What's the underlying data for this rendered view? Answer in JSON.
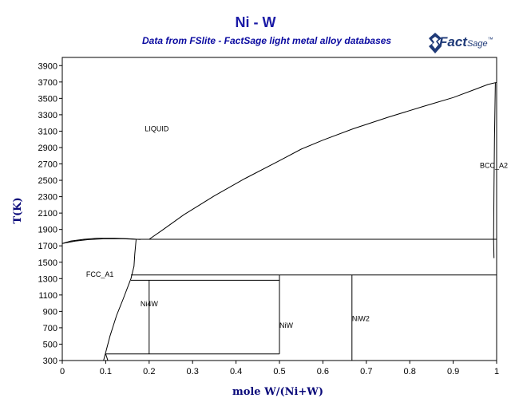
{
  "header": {
    "title": "Ni - W",
    "subtitle": "Data from FSlite - FactSage light metal alloy databases",
    "logo_main": "Fact",
    "logo_small": "Sage",
    "logo_mark": "™"
  },
  "colors": {
    "title": "#1a1aa6",
    "subtitle": "#0a0aa0",
    "axis_title": "#0a0a7a",
    "lines": "#000000",
    "logo": "#1f3a78"
  },
  "chart_data": {
    "type": "line",
    "xlabel": "mole W/(Ni+W)",
    "ylabel": "T(K)",
    "xlim": [
      0,
      1
    ],
    "ylim": [
      300,
      4000
    ],
    "x_ticks": [
      0,
      0.1,
      0.2,
      0.3,
      0.4,
      0.5,
      0.6,
      0.7,
      0.8,
      0.9,
      1
    ],
    "x_tick_labels": [
      "0",
      "0.1",
      "0.2",
      "0.3",
      "0.4",
      "0.5",
      "0.6",
      "0.7",
      "0.8",
      "0.9",
      "1"
    ],
    "y_ticks": [
      300,
      500,
      700,
      900,
      1100,
      1300,
      1500,
      1700,
      1900,
      2100,
      2300,
      2500,
      2700,
      2900,
      3100,
      3300,
      3500,
      3700,
      3900
    ],
    "y_tick_labels": [
      "300",
      "500",
      "700",
      "900",
      "1100",
      "1300",
      "1500",
      "1700",
      "1900",
      "2100",
      "2300",
      "2500",
      "2700",
      "2900",
      "3100",
      "3300",
      "3500",
      "3700",
      "3900"
    ],
    "grid": false,
    "phase_labels": [
      {
        "text": "LIQUID",
        "x": 0.19,
        "y": 3100
      },
      {
        "text": "FCC_A1",
        "x": 0.055,
        "y": 1320
      },
      {
        "text": "Ni4W",
        "x": 0.18,
        "y": 960
      },
      {
        "text": "NiW",
        "x": 0.5,
        "y": 700
      },
      {
        "text": "NiW2",
        "x": 0.667,
        "y": 780
      },
      {
        "text": "BCC_A2",
        "x": 0.99,
        "y": 2650
      }
    ],
    "series": [
      {
        "id": "liquidus-ni-side",
        "points": [
          [
            0,
            1728
          ],
          [
            0.02,
            1760
          ],
          [
            0.05,
            1780
          ],
          [
            0.08,
            1792
          ],
          [
            0.12,
            1792
          ],
          [
            0.15,
            1788
          ],
          [
            0.18,
            1778
          ]
        ]
      },
      {
        "id": "solidus-fcc",
        "points": [
          [
            0,
            1728
          ],
          [
            0.03,
            1758
          ],
          [
            0.06,
            1776
          ],
          [
            0.1,
            1788
          ],
          [
            0.14,
            1786
          ],
          [
            0.17,
            1780
          ]
        ]
      },
      {
        "id": "liquidus-w-side",
        "points": [
          [
            0.2,
            1780
          ],
          [
            0.23,
            1890
          ],
          [
            0.28,
            2080
          ],
          [
            0.35,
            2310
          ],
          [
            0.42,
            2520
          ],
          [
            0.5,
            2740
          ],
          [
            0.55,
            2880
          ],
          [
            0.6,
            2990
          ],
          [
            0.67,
            3130
          ],
          [
            0.75,
            3270
          ],
          [
            0.83,
            3400
          ],
          [
            0.9,
            3510
          ],
          [
            0.95,
            3610
          ],
          [
            0.98,
            3670
          ],
          [
            1.0,
            3695
          ]
        ]
      },
      {
        "id": "eutectic-line",
        "points": [
          [
            0.17,
            1780
          ],
          [
            1.0,
            1780
          ]
        ]
      },
      {
        "id": "fcc-solvus",
        "points": [
          [
            0.17,
            1780
          ],
          [
            0.167,
            1600
          ],
          [
            0.165,
            1450
          ],
          [
            0.158,
            1300
          ],
          [
            0.14,
            1050
          ],
          [
            0.125,
            850
          ],
          [
            0.11,
            600
          ],
          [
            0.1,
            400
          ],
          [
            0.095,
            300
          ]
        ]
      },
      {
        "id": "fcc-solvus-low",
        "points": [
          [
            0.1,
            380
          ],
          [
            0.105,
            300
          ]
        ]
      },
      {
        "id": "nit-peritectoid-line",
        "points": [
          [
            0.158,
            1345
          ],
          [
            1.0,
            1345
          ]
        ]
      },
      {
        "id": "ni4w-top",
        "points": [
          [
            0.158,
            1280
          ],
          [
            0.5,
            1280
          ]
        ]
      },
      {
        "id": "ni4w-line",
        "points": [
          [
            0.2,
            1280
          ],
          [
            0.2,
            380
          ]
        ]
      },
      {
        "id": "niw-line",
        "points": [
          [
            0.5,
            1345
          ],
          [
            0.5,
            380
          ]
        ]
      },
      {
        "id": "eutectoid-low",
        "points": [
          [
            0.1,
            380
          ],
          [
            0.5,
            380
          ]
        ]
      },
      {
        "id": "niw2-line",
        "points": [
          [
            0.667,
            1345
          ],
          [
            0.667,
            300
          ]
        ]
      },
      {
        "id": "bcc-solvus",
        "points": [
          [
            0.997,
            3690
          ],
          [
            0.995,
            3000
          ],
          [
            0.994,
            2400
          ],
          [
            0.993,
            1780
          ],
          [
            0.994,
            1550
          ]
        ]
      }
    ]
  }
}
